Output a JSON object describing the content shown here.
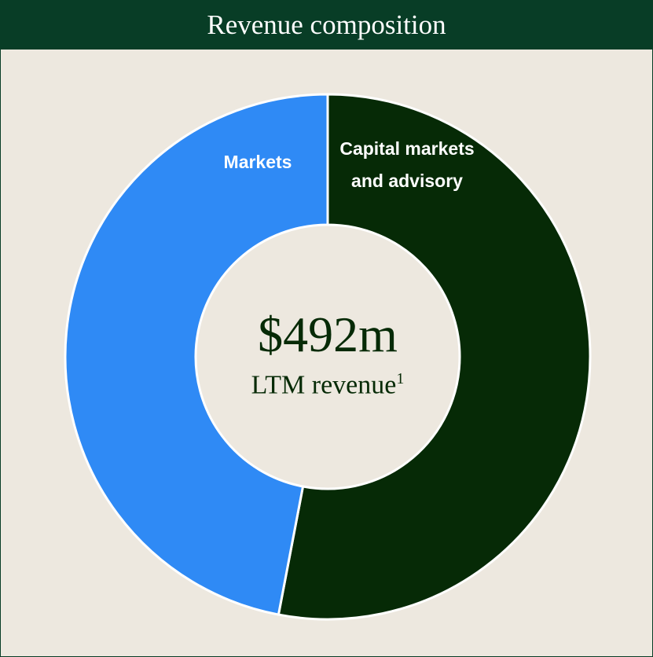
{
  "chart_data": {
    "type": "donut",
    "title": "Revenue composition",
    "categories": [
      "Capital markets and advisory",
      "Markets"
    ],
    "values": [
      53,
      47
    ],
    "colors": [
      "#062a06",
      "#2f8af5"
    ],
    "center_value": "$492m",
    "center_label": "LTM revenue",
    "center_footnote": "1"
  }
}
